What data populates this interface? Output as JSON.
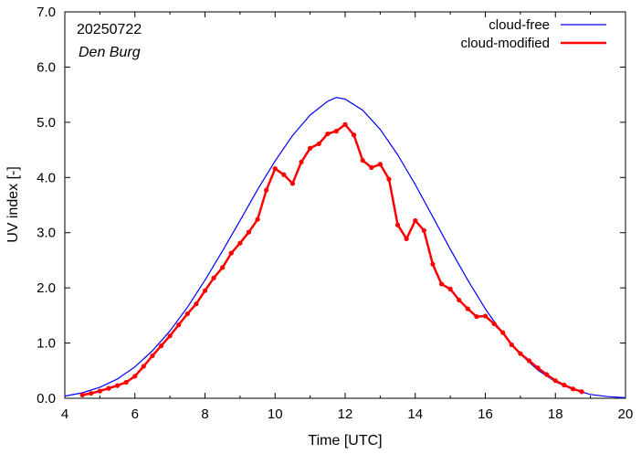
{
  "chart_data": {
    "type": "line",
    "date_label": "20250722",
    "location_label": "Den Burg",
    "xlabel": "Time  [UTC]",
    "ylabel": "UV index  [-]",
    "xlim": [
      4,
      20
    ],
    "ylim": [
      0,
      7
    ],
    "x_ticks": [
      4,
      6,
      8,
      10,
      12,
      14,
      16,
      18,
      20
    ],
    "x_tick_labels": [
      "4",
      "6",
      "8",
      "10",
      "12",
      "14",
      "16",
      "18",
      "20"
    ],
    "y_ticks": [
      0,
      1,
      2,
      3,
      4,
      5,
      6,
      7
    ],
    "y_tick_labels": [
      "0.0",
      "1.0",
      "2.0",
      "3.0",
      "4.0",
      "5.0",
      "6.0",
      "7.0"
    ],
    "legend_position": "top-right",
    "series": [
      {
        "name": "cloud-free",
        "color": "#0000ff",
        "markers": false,
        "x": [
          4.0,
          4.5,
          5.0,
          5.5,
          6.0,
          6.5,
          7.0,
          7.5,
          8.0,
          8.5,
          9.0,
          9.5,
          10.0,
          10.5,
          11.0,
          11.5,
          11.75,
          12.0,
          12.5,
          13.0,
          13.5,
          14.0,
          14.5,
          15.0,
          15.5,
          16.0,
          16.5,
          17.0,
          17.5,
          18.0,
          18.5,
          19.0,
          19.5,
          20.0
        ],
        "y": [
          0.04,
          0.1,
          0.2,
          0.35,
          0.57,
          0.86,
          1.22,
          1.65,
          2.14,
          2.67,
          3.22,
          3.78,
          4.3,
          4.76,
          5.13,
          5.38,
          5.45,
          5.42,
          5.22,
          4.87,
          4.41,
          3.87,
          3.29,
          2.7,
          2.14,
          1.62,
          1.17,
          0.8,
          0.51,
          0.3,
          0.16,
          0.07,
          0.03,
          0.01
        ]
      },
      {
        "name": "cloud-modified",
        "color": "#ff0000",
        "markers": true,
        "x": [
          4.5,
          4.75,
          5.0,
          5.25,
          5.5,
          5.75,
          6.0,
          6.25,
          6.5,
          6.75,
          7.0,
          7.25,
          7.5,
          7.75,
          8.0,
          8.25,
          8.5,
          8.75,
          9.0,
          9.25,
          9.5,
          9.75,
          10.0,
          10.25,
          10.5,
          10.75,
          11.0,
          11.25,
          11.5,
          11.75,
          12.0,
          12.25,
          12.5,
          12.75,
          13.0,
          13.25,
          13.5,
          13.75,
          14.0,
          14.25,
          14.5,
          14.75,
          15.0,
          15.25,
          15.5,
          15.75,
          16.0,
          16.25,
          16.5,
          16.75,
          17.0,
          17.25,
          17.5,
          17.75,
          18.0,
          18.25,
          18.5,
          18.75
        ],
        "y": [
          0.06,
          0.09,
          0.13,
          0.18,
          0.23,
          0.29,
          0.4,
          0.58,
          0.77,
          0.95,
          1.13,
          1.33,
          1.53,
          1.71,
          1.95,
          2.18,
          2.37,
          2.63,
          2.81,
          3.01,
          3.24,
          3.77,
          4.16,
          4.05,
          3.89,
          4.28,
          4.53,
          4.61,
          4.79,
          4.84,
          4.96,
          4.77,
          4.31,
          4.18,
          4.24,
          3.97,
          3.14,
          2.89,
          3.22,
          3.04,
          2.43,
          2.07,
          1.98,
          1.78,
          1.62,
          1.48,
          1.49,
          1.35,
          1.19,
          0.97,
          0.81,
          0.68,
          0.55,
          0.43,
          0.32,
          0.24,
          0.17,
          0.12
        ]
      }
    ]
  }
}
